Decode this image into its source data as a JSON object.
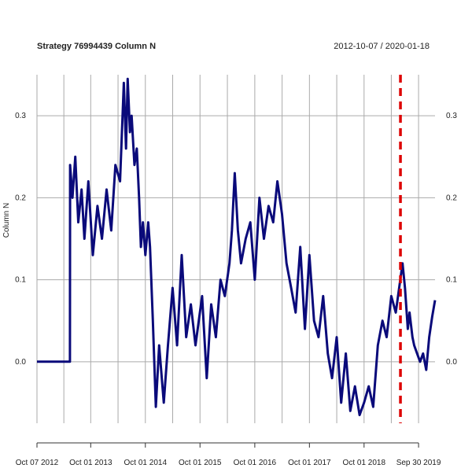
{
  "chart_data": {
    "type": "line",
    "title": "Strategy 76994439 Column N",
    "date_range": "2012-10-07 / 2020-01-18",
    "xlabel": "",
    "ylabel": "Column N",
    "ylim": [
      -0.075,
      0.35
    ],
    "yticks": [
      0.0,
      0.1,
      0.2,
      0.3
    ],
    "ytick_labels": [
      "0.0",
      "0.1",
      "0.2",
      "0.3"
    ],
    "xticks": [
      {
        "date": "2012-10-07",
        "label": "Oct 07 2012"
      },
      {
        "date": "2013-10-01",
        "label": "Oct 01 2013"
      },
      {
        "date": "2014-10-01",
        "label": "Oct 01 2014"
      },
      {
        "date": "2015-10-01",
        "label": "Oct 01 2015"
      },
      {
        "date": "2016-10-01",
        "label": "Oct 01 2016"
      },
      {
        "date": "2017-10-01",
        "label": "Oct 01 2017"
      },
      {
        "date": "2018-10-01",
        "label": "Oct 01 2018"
      },
      {
        "date": "2019-09-30",
        "label": "Sep 30 2019"
      }
    ],
    "grid": true,
    "vline": {
      "date": "2019-06-01",
      "color": "#dd0000",
      "style": "dashed"
    },
    "series": [
      {
        "color": "#0a0a7a",
        "points": [
          [
            "2012-10-07",
            0.0
          ],
          [
            "2013-05-15",
            0.0
          ],
          [
            "2013-05-16",
            0.24
          ],
          [
            "2013-06-01",
            0.2
          ],
          [
            "2013-06-20",
            0.25
          ],
          [
            "2013-07-10",
            0.17
          ],
          [
            "2013-08-01",
            0.21
          ],
          [
            "2013-08-20",
            0.15
          ],
          [
            "2013-09-15",
            0.22
          ],
          [
            "2013-10-15",
            0.13
          ],
          [
            "2013-11-15",
            0.19
          ],
          [
            "2013-12-15",
            0.15
          ],
          [
            "2014-01-15",
            0.21
          ],
          [
            "2014-02-15",
            0.16
          ],
          [
            "2014-03-15",
            0.24
          ],
          [
            "2014-04-15",
            0.22
          ],
          [
            "2014-05-10",
            0.34
          ],
          [
            "2014-05-25",
            0.26
          ],
          [
            "2014-06-05",
            0.345
          ],
          [
            "2014-06-20",
            0.28
          ],
          [
            "2014-07-01",
            0.3
          ],
          [
            "2014-07-20",
            0.24
          ],
          [
            "2014-08-05",
            0.26
          ],
          [
            "2014-08-20",
            0.2
          ],
          [
            "2014-09-01",
            0.14
          ],
          [
            "2014-09-15",
            0.17
          ],
          [
            "2014-10-01",
            0.13
          ],
          [
            "2014-10-20",
            0.17
          ],
          [
            "2014-11-01",
            0.14
          ],
          [
            "2014-11-20",
            0.05
          ],
          [
            "2014-12-10",
            -0.055
          ],
          [
            "2015-01-01",
            0.02
          ],
          [
            "2015-02-01",
            -0.05
          ],
          [
            "2015-03-01",
            0.02
          ],
          [
            "2015-04-01",
            0.09
          ],
          [
            "2015-05-01",
            0.02
          ],
          [
            "2015-06-01",
            0.13
          ],
          [
            "2015-07-01",
            0.03
          ],
          [
            "2015-08-01",
            0.07
          ],
          [
            "2015-09-01",
            0.02
          ],
          [
            "2015-10-15",
            0.08
          ],
          [
            "2015-11-15",
            -0.02
          ],
          [
            "2015-12-15",
            0.07
          ],
          [
            "2016-01-15",
            0.03
          ],
          [
            "2016-02-15",
            0.1
          ],
          [
            "2016-03-15",
            0.08
          ],
          [
            "2016-04-15",
            0.12
          ],
          [
            "2016-05-01",
            0.16
          ],
          [
            "2016-05-20",
            0.23
          ],
          [
            "2016-06-10",
            0.16
          ],
          [
            "2016-07-01",
            0.12
          ],
          [
            "2016-08-01",
            0.15
          ],
          [
            "2016-09-01",
            0.17
          ],
          [
            "2016-10-01",
            0.1
          ],
          [
            "2016-11-01",
            0.2
          ],
          [
            "2016-12-01",
            0.15
          ],
          [
            "2017-01-01",
            0.19
          ],
          [
            "2017-02-01",
            0.17
          ],
          [
            "2017-03-01",
            0.22
          ],
          [
            "2017-04-01",
            0.18
          ],
          [
            "2017-05-01",
            0.12
          ],
          [
            "2017-06-01",
            0.09
          ],
          [
            "2017-07-01",
            0.06
          ],
          [
            "2017-08-01",
            0.14
          ],
          [
            "2017-09-01",
            0.04
          ],
          [
            "2017-10-01",
            0.13
          ],
          [
            "2017-11-01",
            0.05
          ],
          [
            "2017-12-01",
            0.03
          ],
          [
            "2018-01-01",
            0.08
          ],
          [
            "2018-02-01",
            0.01
          ],
          [
            "2018-03-01",
            -0.02
          ],
          [
            "2018-04-01",
            0.03
          ],
          [
            "2018-05-01",
            -0.05
          ],
          [
            "2018-06-01",
            0.01
          ],
          [
            "2018-07-01",
            -0.06
          ],
          [
            "2018-08-01",
            -0.03
          ],
          [
            "2018-09-01",
            -0.065
          ],
          [
            "2018-10-01",
            -0.05
          ],
          [
            "2018-11-01",
            -0.03
          ],
          [
            "2018-12-01",
            -0.055
          ],
          [
            "2019-01-01",
            0.02
          ],
          [
            "2019-02-01",
            0.05
          ],
          [
            "2019-03-01",
            0.03
          ],
          [
            "2019-04-01",
            0.08
          ],
          [
            "2019-05-01",
            0.06
          ],
          [
            "2019-06-15",
            0.12
          ],
          [
            "2019-07-01",
            0.09
          ],
          [
            "2019-07-20",
            0.04
          ],
          [
            "2019-08-01",
            0.06
          ],
          [
            "2019-08-20",
            0.03
          ],
          [
            "2019-09-01",
            0.02
          ],
          [
            "2019-09-20",
            0.01
          ],
          [
            "2019-10-10",
            0.0
          ],
          [
            "2019-10-30",
            0.01
          ],
          [
            "2019-11-20",
            -0.01
          ],
          [
            "2019-12-10",
            0.03
          ],
          [
            "2019-12-30",
            0.055
          ],
          [
            "2020-01-18",
            0.075
          ]
        ]
      }
    ]
  }
}
